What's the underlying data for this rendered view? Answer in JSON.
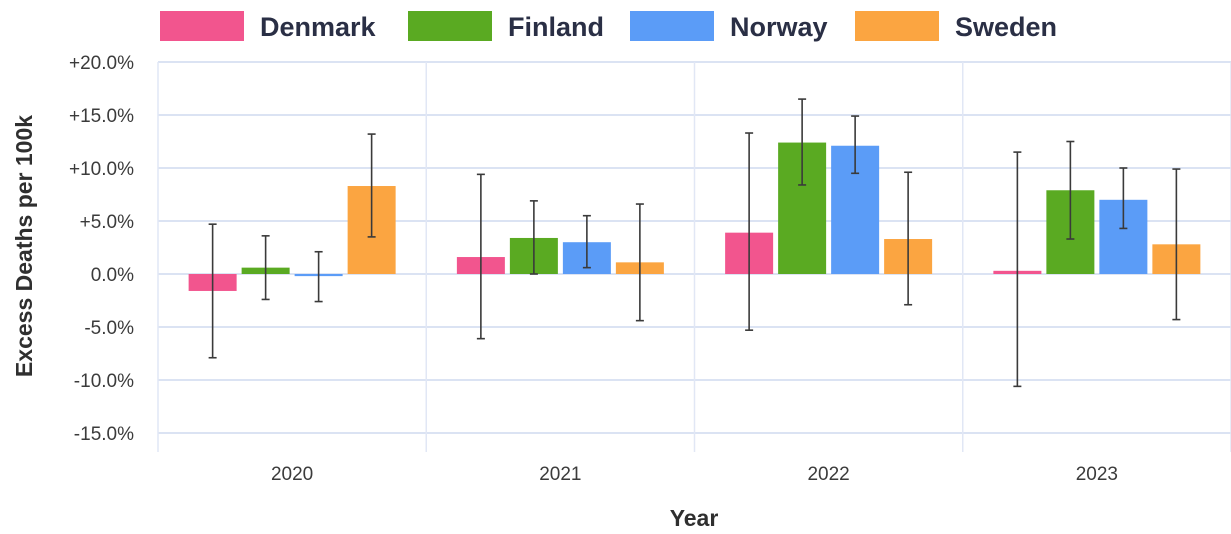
{
  "chart_data": {
    "type": "bar",
    "title": "",
    "xlabel": "Year",
    "ylabel": "Excess Deaths per 100k",
    "categories": [
      "2020",
      "2021",
      "2022",
      "2023"
    ],
    "ylim": [
      -15,
      20
    ],
    "yticks": [
      20,
      15,
      10,
      5,
      0,
      -5,
      -10,
      -15
    ],
    "ytick_labels": [
      "+20.0%",
      "+15.0%",
      "+10.0%",
      "+5.0%",
      "0.0%",
      "-5.0%",
      "-10.0%",
      "-15.0%"
    ],
    "grid": true,
    "legend_position": "top",
    "series": [
      {
        "name": "Denmark",
        "color": "#f2558e",
        "values": [
          -1.6,
          1.6,
          3.9,
          0.3
        ],
        "error_low": [
          -7.9,
          -6.1,
          -5.3,
          -10.6
        ],
        "error_high": [
          4.7,
          9.4,
          13.3,
          11.5
        ]
      },
      {
        "name": "Finland",
        "color": "#5aaa22",
        "values": [
          0.6,
          3.4,
          12.4,
          7.9
        ],
        "error_low": [
          -2.4,
          0.0,
          8.4,
          3.3
        ],
        "error_high": [
          3.6,
          6.9,
          16.5,
          12.5
        ]
      },
      {
        "name": "Norway",
        "color": "#5b9cf7",
        "values": [
          -0.2,
          3.0,
          12.1,
          7.0
        ],
        "error_low": [
          -2.6,
          0.6,
          9.5,
          4.3
        ],
        "error_high": [
          2.1,
          5.5,
          14.9,
          10.0
        ]
      },
      {
        "name": "Sweden",
        "color": "#fba541",
        "values": [
          8.3,
          1.1,
          3.3,
          2.8
        ],
        "error_low": [
          3.5,
          -4.4,
          -2.9,
          -4.3
        ],
        "error_high": [
          13.2,
          6.6,
          9.6,
          9.9
        ]
      }
    ]
  }
}
